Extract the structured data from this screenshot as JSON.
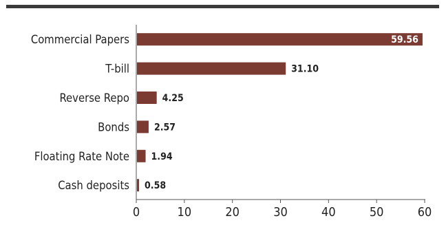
{
  "chart_data": {
    "type": "bar",
    "orientation": "horizontal",
    "categories": [
      "Commercial Papers",
      "T-bill",
      "Reverse Repo",
      "Bonds",
      "Floating Rate Note",
      "Cash deposits"
    ],
    "values": [
      59.56,
      31.1,
      4.25,
      2.57,
      1.94,
      0.58
    ],
    "value_labels": [
      "59.56",
      "31.10",
      "4.25",
      "2.57",
      "1.94",
      "0.58"
    ],
    "xlim": [
      0,
      60
    ],
    "xticks": [
      "0",
      "10",
      "20",
      "30",
      "40",
      "50",
      "60"
    ],
    "grid": false,
    "colors": {
      "bar": "#7b3b33",
      "axis": "#555555",
      "top_rule": "#3a3a3a"
    }
  }
}
